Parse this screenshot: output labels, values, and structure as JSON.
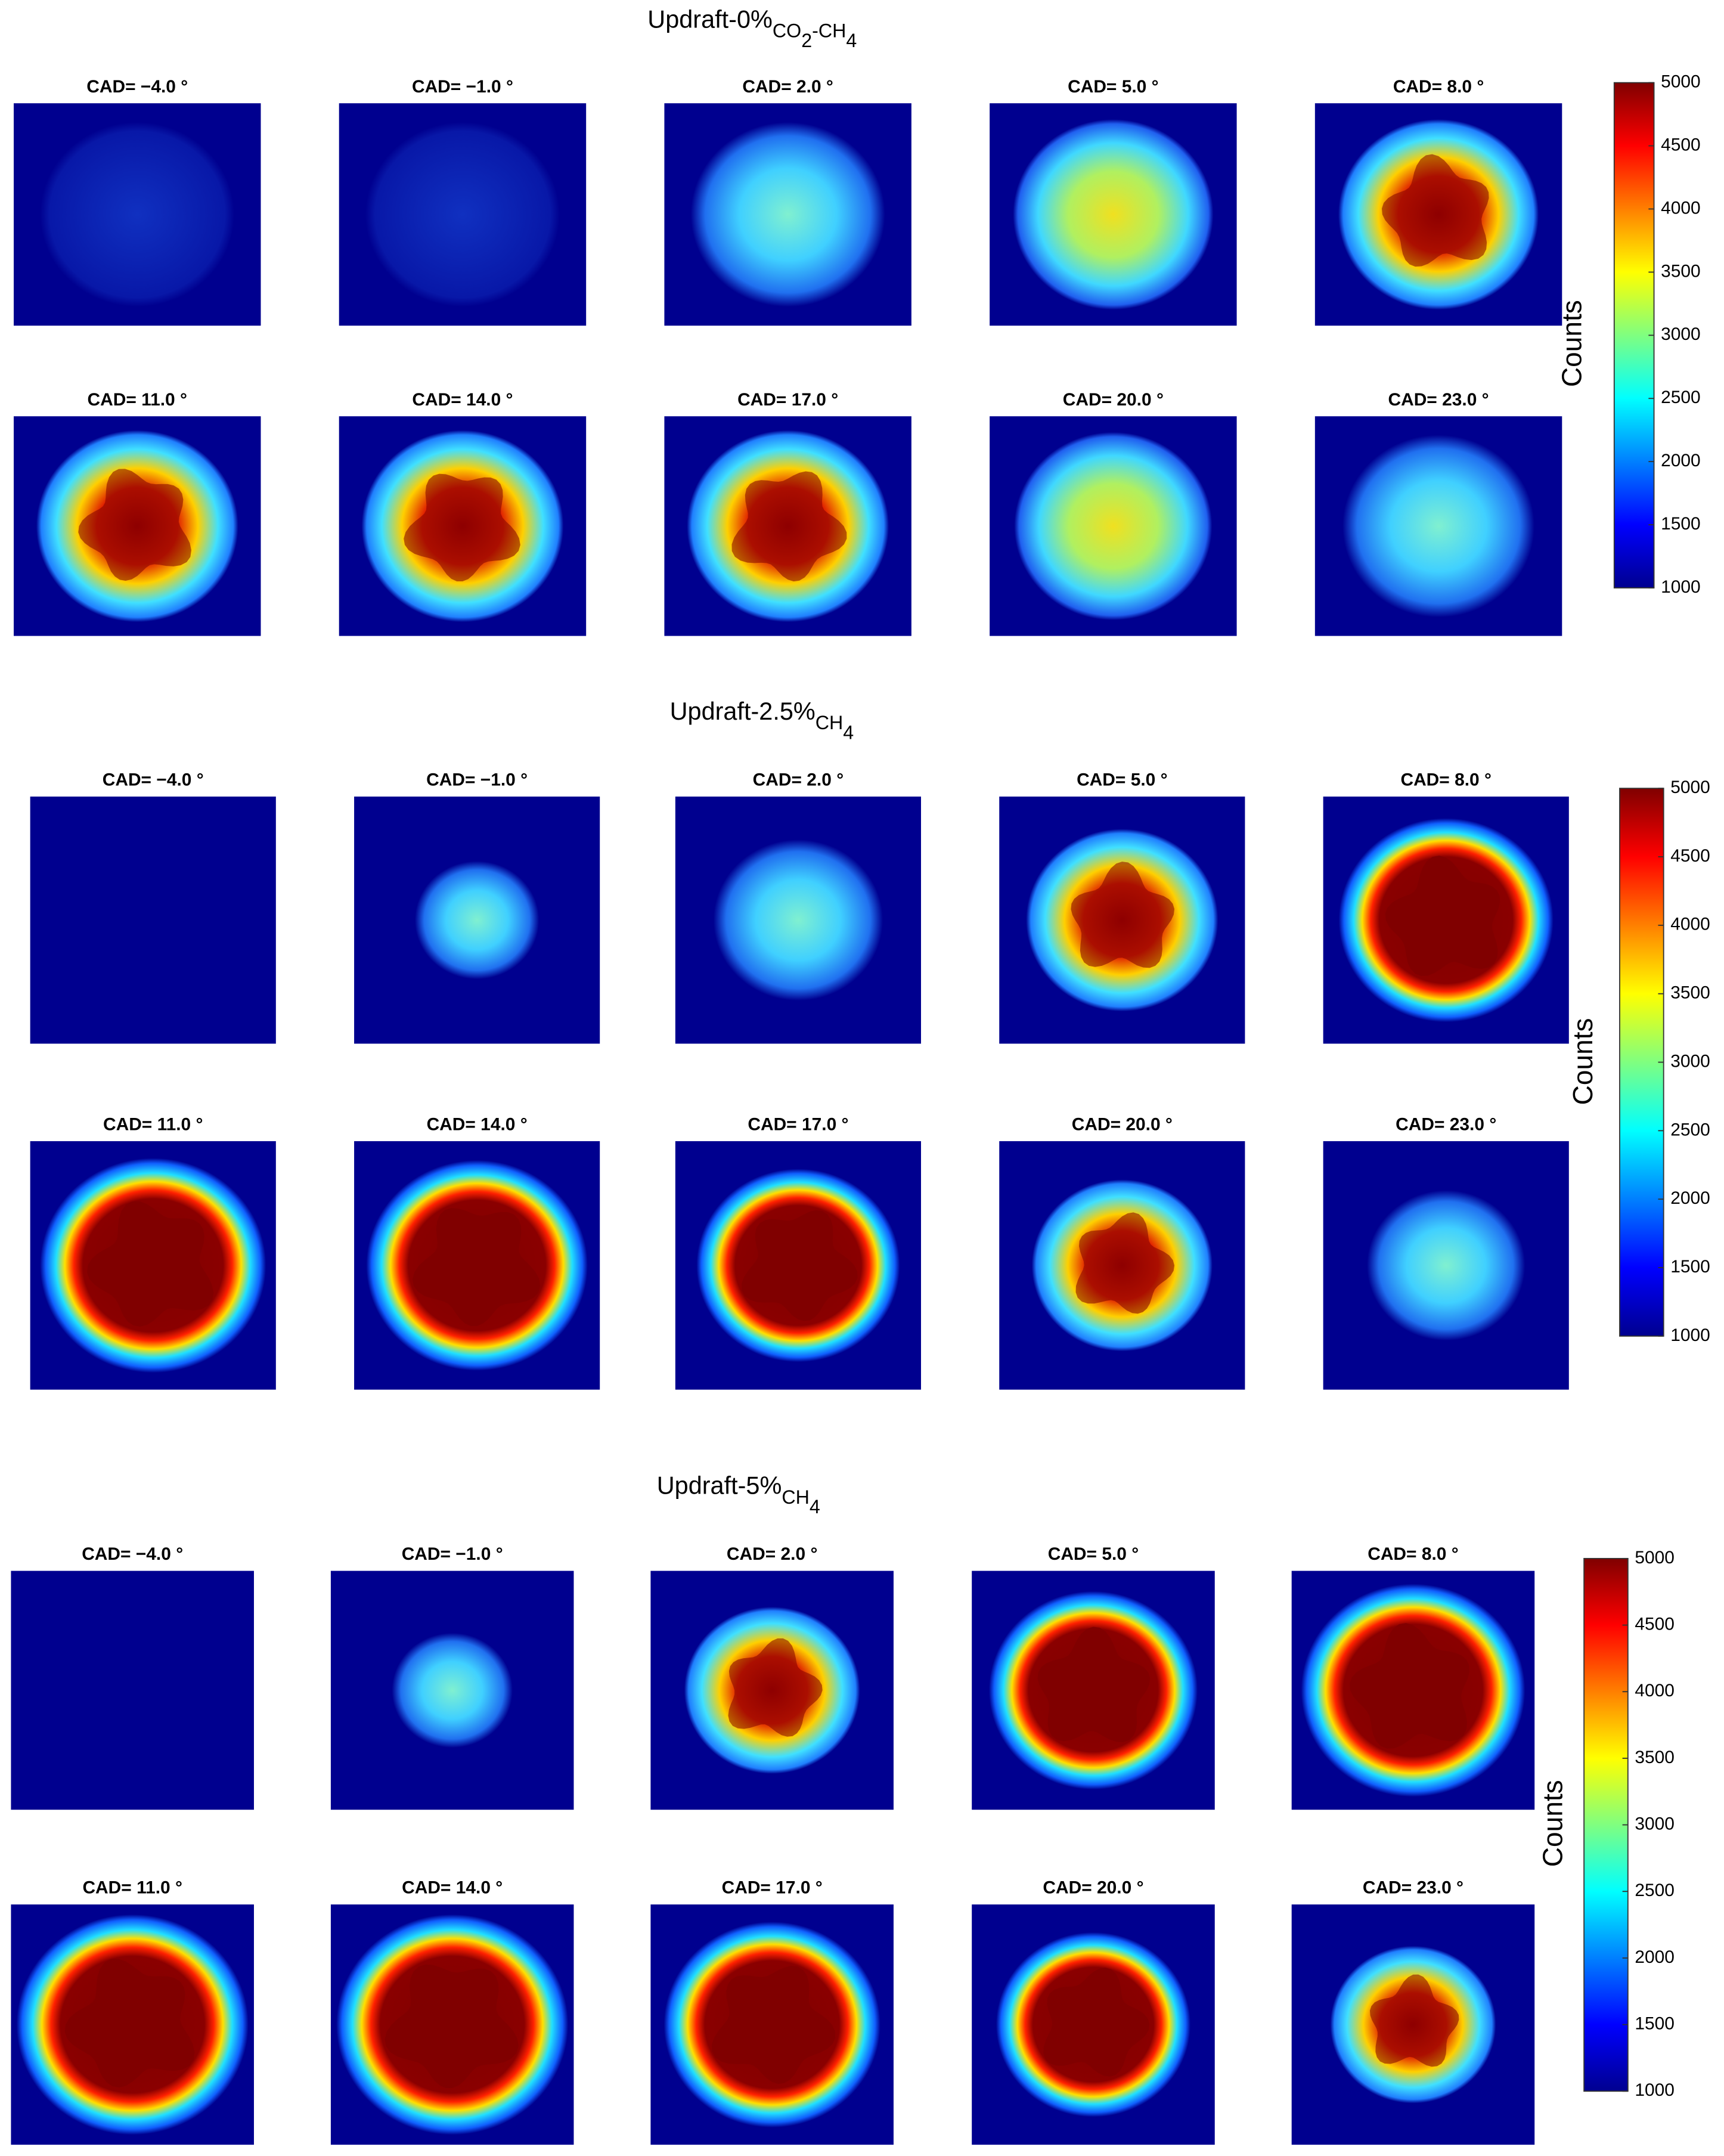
{
  "chart_data": [
    {
      "type": "image-grid",
      "title_parts": [
        "Updraft-0%",
        "CO",
        "2",
        "-CH",
        "4"
      ],
      "title_levels": [
        0,
        1,
        2,
        1,
        2
      ],
      "panels": [
        "CAD= −4.0 °",
        "CAD= −1.0 °",
        "CAD= 2.0 °",
        "CAD= 5.0 °",
        "CAD= 8.0 °",
        "CAD= 11.0 °",
        "CAD= 14.0 °",
        "CAD= 17.0 °",
        "CAD= 20.0 °",
        "CAD= 23.0 °"
      ],
      "colorbar_label": "Counts",
      "colormap": "jet",
      "clim": [
        1000,
        5000
      ],
      "cticks": [
        1000,
        1500,
        2000,
        2500,
        3000,
        3500,
        4000,
        4500,
        5000
      ]
    },
    {
      "type": "image-grid",
      "title_parts": [
        "Updraft-2.5%",
        "CH",
        "4"
      ],
      "title_levels": [
        0,
        1,
        2
      ],
      "panels": [
        "CAD= −4.0 °",
        "CAD= −1.0 °",
        "CAD= 2.0 °",
        "CAD= 5.0 °",
        "CAD= 8.0 °",
        "CAD= 11.0 °",
        "CAD= 14.0 °",
        "CAD= 17.0 °",
        "CAD= 20.0 °",
        "CAD= 23.0 °"
      ],
      "colorbar_label": "Counts",
      "colormap": "jet",
      "clim": [
        1000,
        5000
      ],
      "cticks": [
        1000,
        1500,
        2000,
        2500,
        3000,
        3500,
        4000,
        4500,
        5000
      ]
    },
    {
      "type": "image-grid",
      "title_parts": [
        "Updraft-5%",
        "CH",
        "4"
      ],
      "title_levels": [
        0,
        1,
        2
      ],
      "panels": [
        "CAD= −4.0 °",
        "CAD= −1.0 °",
        "CAD= 2.0 °",
        "CAD= 5.0 °",
        "CAD= 8.0 °",
        "CAD= 11.0 °",
        "CAD= 14.0 °",
        "CAD= 17.0 °",
        "CAD= 20.0 °",
        "CAD= 23.0 °"
      ],
      "colorbar_label": "Counts",
      "colormap": "jet",
      "clim": [
        1000,
        5000
      ],
      "cticks": [
        1000,
        1500,
        2000,
        2500,
        3000,
        3500,
        4000,
        4500,
        5000
      ]
    }
  ]
}
